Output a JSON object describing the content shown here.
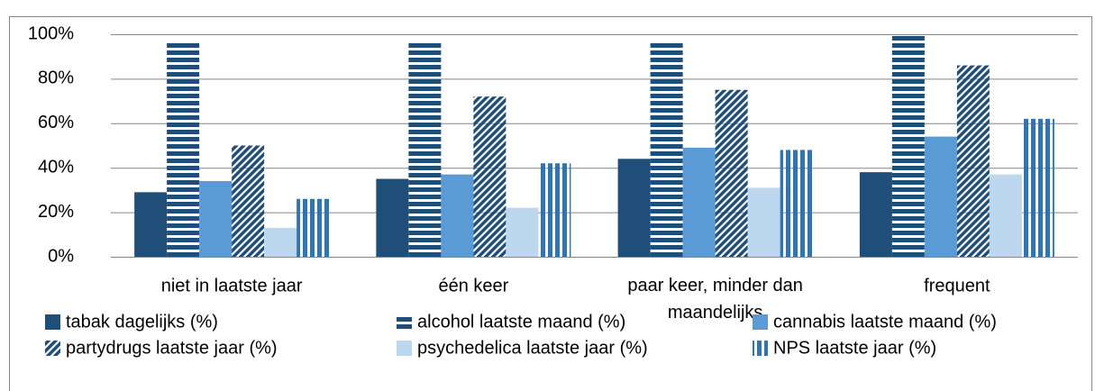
{
  "chart_data": {
    "type": "bar",
    "categories": [
      "niet in laatste jaar",
      "één keer",
      "paar keer, minder dan maandelijks",
      "frequent"
    ],
    "series": [
      {
        "name": "tabak dagelijks (%)",
        "color": "#1f4e79",
        "pattern": "solid",
        "values": [
          29,
          35,
          44,
          38
        ]
      },
      {
        "name": "alcohol laatste maand (%)",
        "color": "#1f4e79",
        "pattern": "horizontal",
        "values": [
          97,
          97,
          97,
          100
        ]
      },
      {
        "name": "cannabis laatste maand (%)",
        "color": "#5b9bd5",
        "pattern": "solid",
        "values": [
          34,
          37,
          49,
          54
        ]
      },
      {
        "name": "partydrugs laatste jaar (%)",
        "color": "#1f4e79",
        "pattern": "diagonal",
        "values": [
          50,
          72,
          75,
          86
        ]
      },
      {
        "name": "psychedelica laatste jaar (%)",
        "color": "#bdd7ee",
        "pattern": "solid",
        "values": [
          13,
          22,
          31,
          37
        ]
      },
      {
        "name": "NPS laatste jaar (%)",
        "color": "#2e75b6",
        "pattern": "vertical",
        "values": [
          26,
          42,
          48,
          62
        ]
      }
    ],
    "ylim": [
      0,
      100
    ],
    "yticks": [
      {
        "value": 0,
        "label": "0%"
      },
      {
        "value": 20,
        "label": "20%"
      },
      {
        "value": 40,
        "label": "40%"
      },
      {
        "value": 60,
        "label": "60%"
      },
      {
        "value": 80,
        "label": "80%"
      },
      {
        "value": 100,
        "label": "100%"
      }
    ],
    "grid": true,
    "legend": "bottom"
  }
}
